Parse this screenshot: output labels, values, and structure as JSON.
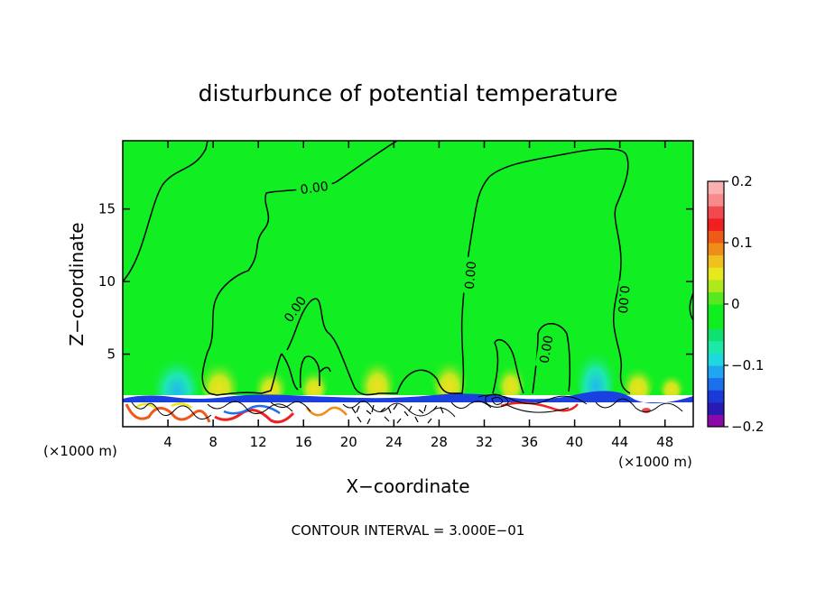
{
  "chart_data": {
    "type": "heatmap",
    "title": "disturbunce of potential temperature",
    "xlabel": "X−coordinate",
    "ylabel": "Z−coordinate",
    "x_unit_left": "(×1000 m)",
    "x_unit_right": "(×1000 m)",
    "footer": "CONTOUR INTERVAL = 3.000E−01",
    "xlim": [
      0,
      50.5
    ],
    "ylim": [
      0,
      19.7
    ],
    "xticks": [
      {
        "value": 4,
        "label": "4"
      },
      {
        "value": 8,
        "label": "8"
      },
      {
        "value": 12,
        "label": "12"
      },
      {
        "value": 16,
        "label": "16"
      },
      {
        "value": 20,
        "label": "20"
      },
      {
        "value": 24,
        "label": "24"
      },
      {
        "value": 28,
        "label": "28"
      },
      {
        "value": 32,
        "label": "32"
      },
      {
        "value": 36,
        "label": "36"
      },
      {
        "value": 40,
        "label": "40"
      },
      {
        "value": 44,
        "label": "44"
      },
      {
        "value": 48,
        "label": "48"
      }
    ],
    "yticks": [
      {
        "value": 5,
        "label": "5"
      },
      {
        "value": 10,
        "label": "10"
      },
      {
        "value": 15,
        "label": "15"
      }
    ],
    "contour_labels": [
      {
        "text": "0.00",
        "x": 17.5,
        "y": 16.5
      },
      {
        "text": "0.00",
        "x": 15.5,
        "y": 8.0
      },
      {
        "text": "0.00",
        "x": 31.0,
        "y": 10.5
      },
      {
        "text": "0.00",
        "x": 37.5,
        "y": 5.2
      },
      {
        "text": "0.00",
        "x": 44.5,
        "y": 8.6
      }
    ],
    "colorbar": {
      "min": -0.2,
      "max": 0.2,
      "ticks": [
        {
          "value": 0.2,
          "label": "0.2"
        },
        {
          "value": 0.1,
          "label": "0.1"
        },
        {
          "value": 0,
          "label": "0"
        },
        {
          "value": -0.1,
          "label": "−0.1"
        },
        {
          "value": -0.2,
          "label": "−0.2"
        }
      ],
      "colors": [
        "#8a0aa8",
        "#2a1ab4",
        "#1a3ad8",
        "#1e6ef0",
        "#20a6f0",
        "#1ed8e0",
        "#1ee8a8",
        "#10e070",
        "#10ee20",
        "#10ee20",
        "#58e81e",
        "#b0e81e",
        "#e8e81e",
        "#f0c01e",
        "#f08c1a",
        "#f05a18",
        "#f02020",
        "#f04a50",
        "#f88a8a",
        "#f8b0b0"
      ]
    },
    "background_value_color": "#11ee22"
  }
}
